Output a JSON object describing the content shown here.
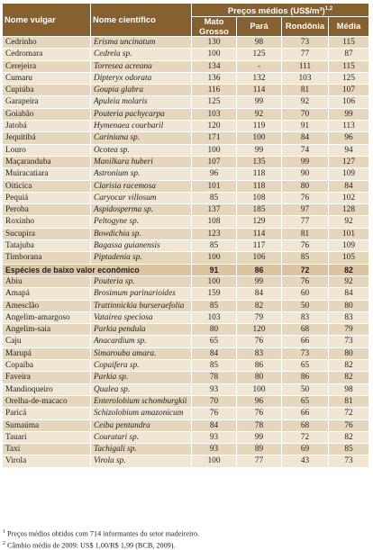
{
  "header": {
    "col_common": "Nome vulgar",
    "col_scientific": "Nome científico",
    "group_label": "Preços médios (US$/m³)",
    "group_superscript": "1,2",
    "col_regions": [
      "Mato Grosso",
      "Pará",
      "Rondônia",
      "Média"
    ]
  },
  "high_value_rows": [
    {
      "common": "Cedrinho",
      "scientific": "Erisma uncinatum",
      "mt": "130",
      "pa": "98",
      "ro": "73",
      "avg": "115"
    },
    {
      "common": "Cedromara",
      "scientific": "Cedrela sp.",
      "mt": "100",
      "pa": "125",
      "ro": "77",
      "avg": "87"
    },
    {
      "common": "Cerejeira",
      "scientific": "Torresea acreana",
      "mt": "134",
      "pa": "-",
      "ro": "111",
      "avg": "115"
    },
    {
      "common": "Cumaru",
      "scientific": "Dipteryx odorata",
      "mt": "136",
      "pa": "132",
      "ro": "103",
      "avg": "125"
    },
    {
      "common": "Cupiúba",
      "scientific": "Goupia glabra",
      "mt": "116",
      "pa": "114",
      "ro": "81",
      "avg": "107"
    },
    {
      "common": "Garapeira",
      "scientific": "Apuleia molaris",
      "mt": "125",
      "pa": "99",
      "ro": "92",
      "avg": "106"
    },
    {
      "common": "Goiabão",
      "scientific": "Pouteria pachycarpa",
      "mt": "103",
      "pa": "92",
      "ro": "70",
      "avg": "99"
    },
    {
      "common": "Jatobá",
      "scientific": "Hymenaea courbaril",
      "mt": "120",
      "pa": "119",
      "ro": "91",
      "avg": "113"
    },
    {
      "common": "Jequitibá",
      "scientific": "Cariniana sp.",
      "mt": "171",
      "pa": "100",
      "ro": "84",
      "avg": "96"
    },
    {
      "common": "Louro",
      "scientific": "Ocotea sp.",
      "mt": "100",
      "pa": "99",
      "ro": "74",
      "avg": "94"
    },
    {
      "common": "Maçaranduba",
      "scientific": "Manilkara huberi",
      "mt": "107",
      "pa": "135",
      "ro": "99",
      "avg": "127"
    },
    {
      "common": "Muiracatiara",
      "scientific": "Astronium sp.",
      "mt": "96",
      "pa": "118",
      "ro": "90",
      "avg": "109"
    },
    {
      "common": "Oiticica",
      "scientific": "Clarisia racemosa",
      "mt": "101",
      "pa": "118",
      "ro": "80",
      "avg": "84"
    },
    {
      "common": "Pequiá",
      "scientific": "Caryocar villosum",
      "mt": "85",
      "pa": "108",
      "ro": "76",
      "avg": "102"
    },
    {
      "common": "Peroba",
      "scientific": "Aspidosperma sp.",
      "mt": "137",
      "pa": "185",
      "ro": "97",
      "avg": "128"
    },
    {
      "common": "Roxinho",
      "scientific": "Peltogyne sp.",
      "mt": "108",
      "pa": "129",
      "ro": "77",
      "avg": "92"
    },
    {
      "common": "Sucupira",
      "scientific": "Bowdichia sp.",
      "mt": "123",
      "pa": "114",
      "ro": "81",
      "avg": "101"
    },
    {
      "common": "Tatajuba",
      "scientific": "Bagassa guianensis",
      "mt": "85",
      "pa": "117",
      "ro": "76",
      "avg": "109"
    },
    {
      "common": "Timborana",
      "scientific": "Piptadenia sp.",
      "mt": "100",
      "pa": "106",
      "ro": "85",
      "avg": "105"
    }
  ],
  "low_value_group": {
    "label": "Espécies de baixo valor econômico",
    "mt": "91",
    "pa": "86",
    "ro": "72",
    "avg": "82"
  },
  "low_value_rows": [
    {
      "common": "Abiu",
      "scientific": "Pouteria sp.",
      "mt": "100",
      "pa": "99",
      "ro": "76",
      "avg": "92"
    },
    {
      "common": "Amapá",
      "scientific": "Brosimum parinarioides",
      "mt": "159",
      "pa": "84",
      "ro": "60",
      "avg": "84"
    },
    {
      "common": "Amesclão",
      "scientific": "Trattinnickia burseraefolia",
      "mt": "85",
      "pa": "82",
      "ro": "50",
      "avg": "80"
    },
    {
      "common": "Angelim-amargoso",
      "scientific": "Vatairea speciosa",
      "mt": "103",
      "pa": "79",
      "ro": "83",
      "avg": "83"
    },
    {
      "common": "Angelim-saia",
      "scientific": "Parkia pendula",
      "mt": "80",
      "pa": "120",
      "ro": "68",
      "avg": "79"
    },
    {
      "common": "Caju",
      "scientific": "Anacardium sp.",
      "mt": "65",
      "pa": "76",
      "ro": "66",
      "avg": "73"
    },
    {
      "common": "Marupá",
      "scientific": "Simarouba amara.",
      "mt": "84",
      "pa": "83",
      "ro": "73",
      "avg": "80"
    },
    {
      "common": "Copaíba",
      "scientific": "Copaifera sp.",
      "mt": "85",
      "pa": "86",
      "ro": "65",
      "avg": "82"
    },
    {
      "common": "Faveira",
      "scientific": "Parkia sp.",
      "mt": "78",
      "pa": "80",
      "ro": "86",
      "avg": "82"
    },
    {
      "common": "Mandioqueiro",
      "scientific": "Qualea sp.",
      "mt": "93",
      "pa": "100",
      "ro": "50",
      "avg": "98"
    },
    {
      "common": "Orelha-de-macaco",
      "scientific": "Enterolobium schomburgkii",
      "mt": "70",
      "pa": "96",
      "ro": "65",
      "avg": "81"
    },
    {
      "common": "Paricá",
      "scientific": "Schizolobium amazonicum",
      "mt": "76",
      "pa": "76",
      "ro": "66",
      "avg": "72"
    },
    {
      "common": "Sumaúma",
      "scientific": "Ceiba pentandra",
      "mt": "84",
      "pa": "78",
      "ro": "68",
      "avg": "76"
    },
    {
      "common": "Tauari",
      "scientific": "Couratari sp.",
      "mt": "93",
      "pa": "99",
      "ro": "72",
      "avg": "82"
    },
    {
      "common": "Taxi",
      "scientific": "Tachigali sp.",
      "mt": "93",
      "pa": "89",
      "ro": "69",
      "avg": "85"
    },
    {
      "common": "Virola",
      "scientific": "Virola sp.",
      "mt": "100",
      "pa": "77",
      "ro": "43",
      "avg": "73"
    }
  ],
  "footnotes": {
    "note1_marker": "1",
    "note1": "Preços médios obtidos com 714 informantes do setor madeireiro.",
    "note2_marker": "2",
    "note2": "Câmbio médio de 2009: US$ 1,00/R$ 1,99 (BCB, 2009)."
  },
  "colors": {
    "header_bg": "#87602f",
    "row_light": "#f0e6d3",
    "row_dark": "#e6d6bb",
    "group_row": "#dcc4a0"
  }
}
